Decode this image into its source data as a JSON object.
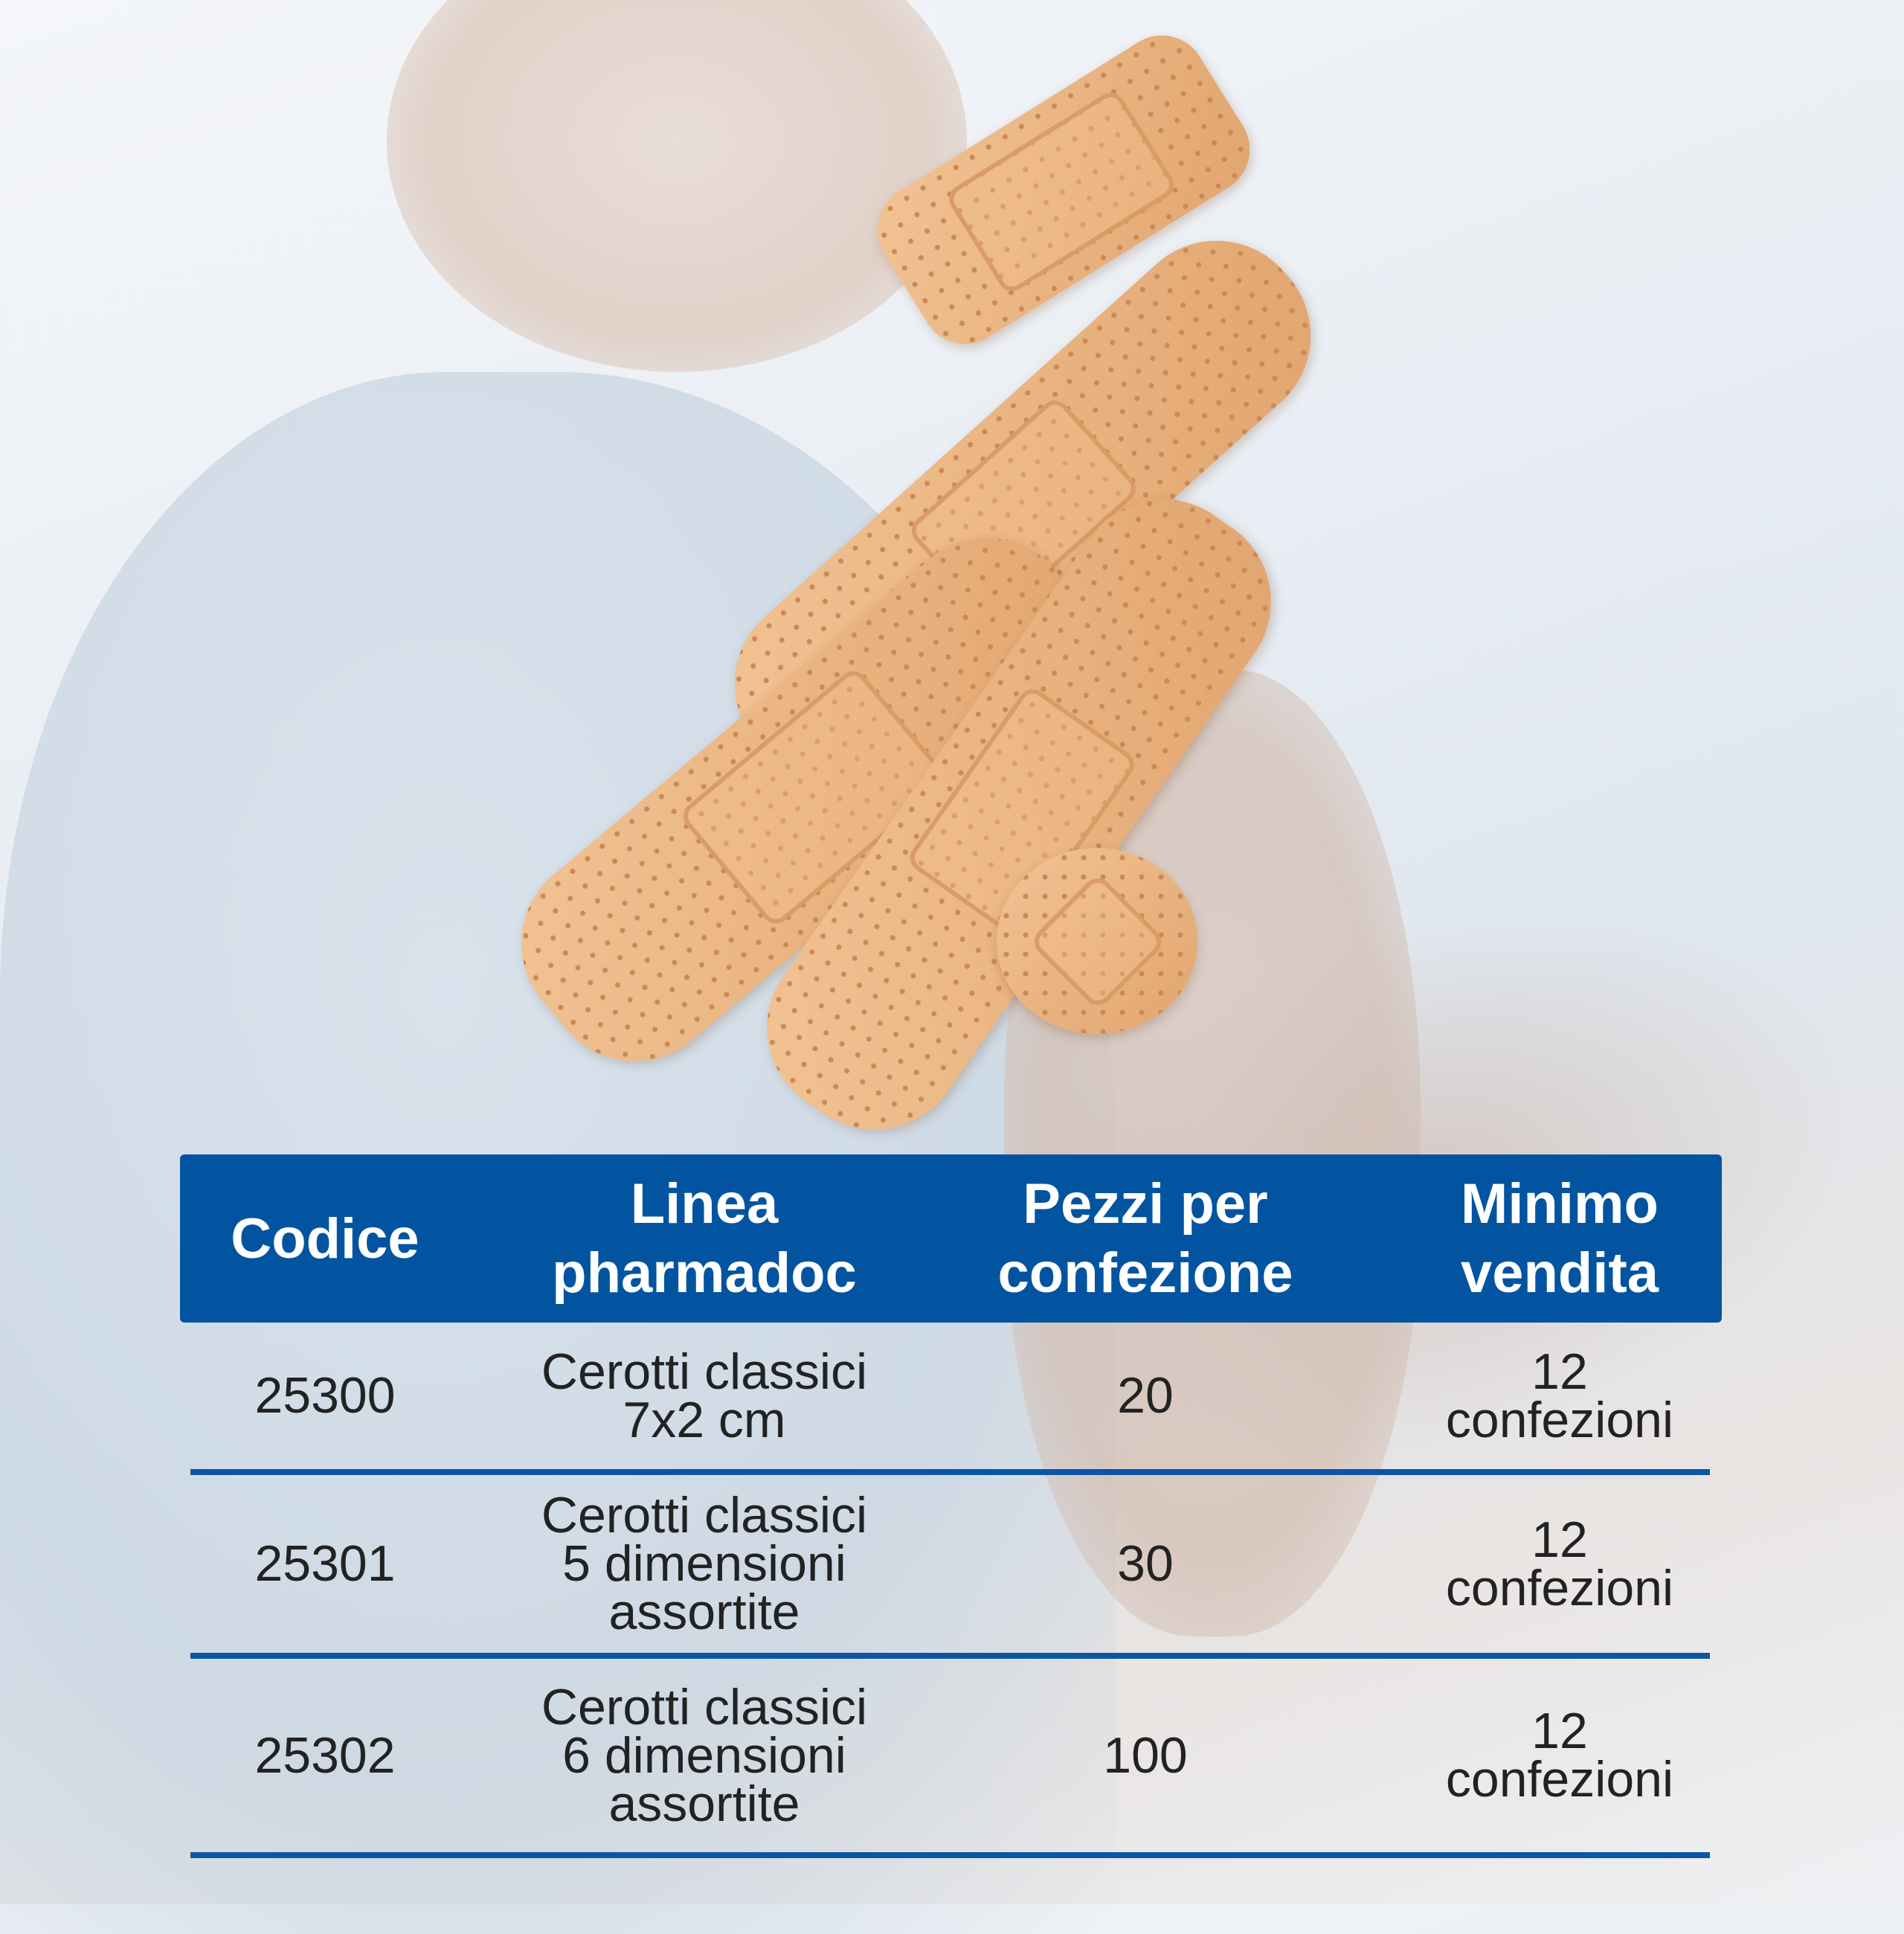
{
  "table": {
    "header_color": "#0354a0",
    "headers": [
      "Codice",
      "Linea\npharmadoc",
      "Pezzi per\nconfezione",
      "Minimo\nvendita"
    ],
    "rows": [
      {
        "codice": "25300",
        "linea": "Cerotti classici\n7x2 cm",
        "pezzi": "20",
        "minimo": "12\nconfezioni"
      },
      {
        "codice": "25301",
        "linea": "Cerotti classici\n5 dimensioni\nassortite",
        "pezzi": "30",
        "minimo": "12\nconfezioni"
      },
      {
        "codice": "25302",
        "linea": "Cerotti classici\n6 dimensioni\nassortite",
        "pezzi": "100",
        "minimo": "12\nconfezioni"
      }
    ]
  }
}
